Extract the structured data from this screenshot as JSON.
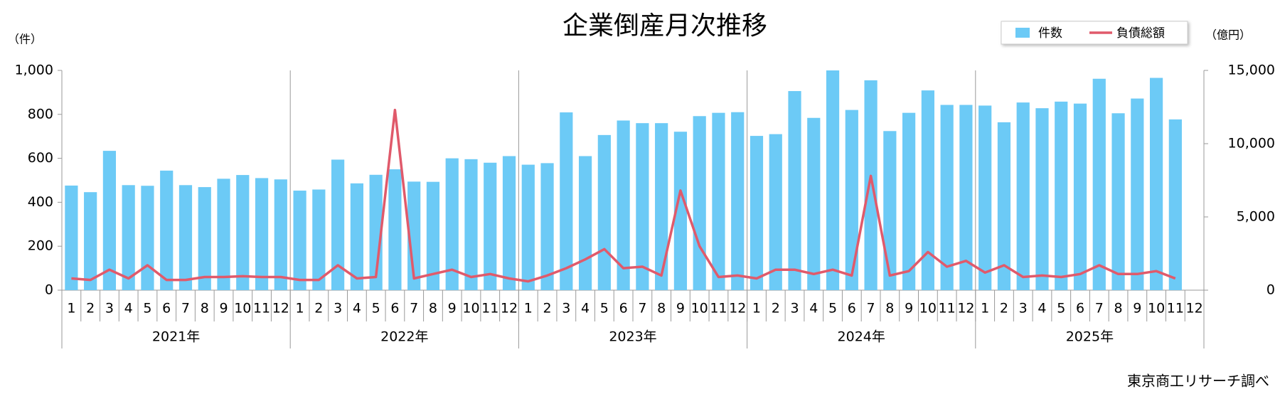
{
  "chart_data": {
    "type": "bar-line",
    "title": "企業倒産月次推移",
    "y_unit": "（件）",
    "y2_unit": "（億円）",
    "source": "東京商工リサーチ調べ",
    "categories": [
      "1",
      "2",
      "3",
      "4",
      "5",
      "6",
      "7",
      "8",
      "9",
      "10",
      "11",
      "12",
      "1",
      "2",
      "3",
      "4",
      "5",
      "6",
      "7",
      "8",
      "9",
      "10",
      "11",
      "12",
      "1",
      "2",
      "3",
      "4",
      "5",
      "6",
      "7",
      "8",
      "9",
      "10",
      "11",
      "12",
      "1",
      "2",
      "3",
      "4",
      "5",
      "6",
      "7",
      "8",
      "9",
      "10",
      "11",
      "12",
      "1",
      "2",
      "3",
      "4",
      "5",
      "6",
      "7",
      "8",
      "9",
      "10",
      "11",
      "12"
    ],
    "years": [
      "2021年",
      "2022年",
      "2023年",
      "2024年",
      "2025年"
    ],
    "series": [
      {
        "name": "件数",
        "type": "bar",
        "color": "#6ccaf6",
        "values": [
          476,
          446,
          634,
          478,
          475,
          544,
          478,
          469,
          507,
          524,
          510,
          504,
          453,
          458,
          594,
          486,
          525,
          550,
          494,
          493,
          600,
          596,
          580,
          610,
          571,
          578,
          809,
          610,
          706,
          772,
          760,
          760,
          721,
          792,
          807,
          810,
          702,
          710,
          906,
          784,
          1000,
          820,
          955,
          724,
          807,
          909,
          843,
          843,
          840,
          764,
          854,
          828,
          858,
          849,
          962,
          805,
          872,
          966,
          777,
          null
        ]
      },
      {
        "name": "負債総額",
        "type": "line",
        "axis": "y2",
        "color": "#e05a6b",
        "values": [
          800,
          700,
          1400,
          800,
          1700,
          700,
          700,
          900,
          900,
          950,
          900,
          900,
          700,
          700,
          1700,
          800,
          900,
          12300,
          800,
          1100,
          1400,
          900,
          1100,
          800,
          600,
          1000,
          1500,
          2100,
          2800,
          1500,
          1600,
          1000,
          6800,
          3000,
          900,
          1000,
          800,
          1400,
          1400,
          1100,
          1400,
          1000,
          7800,
          1000,
          1300,
          2600,
          1600,
          2000,
          1200,
          1700,
          900,
          1000,
          900,
          1100,
          1700,
          1100,
          1100,
          1300,
          800,
          null
        ]
      }
    ],
    "ylim": [
      0,
      1000
    ],
    "yticks": [
      0,
      200,
      400,
      600,
      800,
      {
        "value": 1000,
        "label": "1,000"
      }
    ],
    "y2lim": [
      0,
      15000
    ],
    "y2ticks": [
      0,
      {
        "value": 5000,
        "label": "5,000"
      },
      {
        "value": 10000,
        "label": "10,000"
      },
      {
        "value": 15000,
        "label": "15,000"
      }
    ],
    "grid": false
  }
}
